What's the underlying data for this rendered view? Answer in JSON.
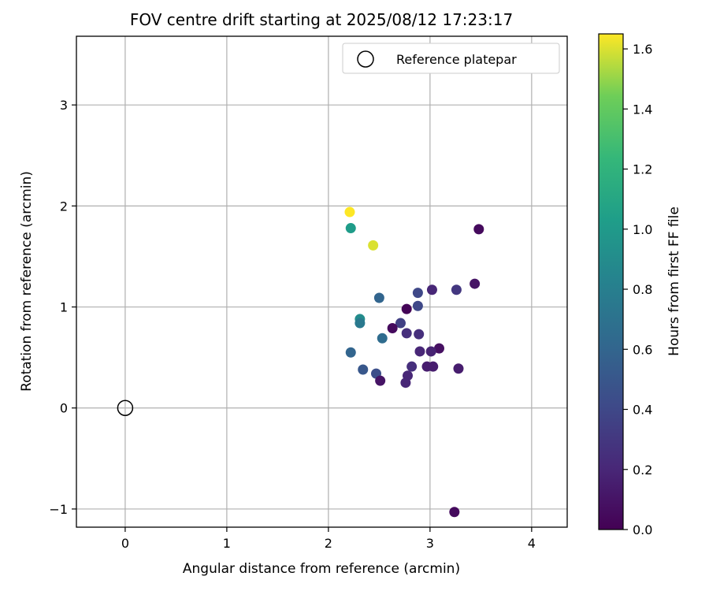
{
  "chart_data": {
    "type": "scatter",
    "title": "FOV centre drift starting at 2025/08/12 17:23:17",
    "xlabel": "Angular distance from reference (arcmin)",
    "ylabel": "Rotation from reference (arcmin)",
    "xlim": [
      -0.48,
      4.35
    ],
    "ylim": [
      -1.18,
      3.68
    ],
    "xticks": [
      0,
      1,
      2,
      3,
      4
    ],
    "yticks": [
      -1,
      0,
      1,
      2,
      3
    ],
    "xtick_labels": [
      "0",
      "1",
      "2",
      "3",
      "4"
    ],
    "ytick_labels": [
      "−1",
      "0",
      "1",
      "2",
      "3"
    ],
    "grid": true,
    "legend": {
      "position": "top-right",
      "entries": [
        {
          "label": "Reference platepar",
          "marker": "open-circle"
        }
      ]
    },
    "reference_point": {
      "x": 0,
      "y": 0
    },
    "colorbar": {
      "label": "Hours from first FF file",
      "min": 0.0,
      "max": 1.65,
      "ticks": [
        0.0,
        0.2,
        0.4,
        0.6,
        0.8,
        1.0,
        1.2,
        1.4,
        1.6
      ],
      "tick_labels": [
        "0.0",
        "0.2",
        "0.4",
        "0.6",
        "0.8",
        "1.0",
        "1.2",
        "1.4",
        "1.6"
      ],
      "colormap": "viridis"
    },
    "series": [
      {
        "points": [
          {
            "x": 2.21,
            "y": 1.94,
            "c": 1.65
          },
          {
            "x": 2.22,
            "y": 1.78,
            "c": 1.02
          },
          {
            "x": 2.44,
            "y": 1.61,
            "c": 1.6
          },
          {
            "x": 3.48,
            "y": 1.77,
            "c": 0.05
          },
          {
            "x": 3.44,
            "y": 1.23,
            "c": 0.1
          },
          {
            "x": 3.02,
            "y": 1.17,
            "c": 0.2
          },
          {
            "x": 3.26,
            "y": 1.17,
            "c": 0.3
          },
          {
            "x": 2.88,
            "y": 1.14,
            "c": 0.4
          },
          {
            "x": 2.5,
            "y": 1.09,
            "c": 0.6
          },
          {
            "x": 2.88,
            "y": 1.01,
            "c": 0.4
          },
          {
            "x": 2.77,
            "y": 0.98,
            "c": 0.02
          },
          {
            "x": 2.31,
            "y": 0.88,
            "c": 0.9
          },
          {
            "x": 2.31,
            "y": 0.84,
            "c": 0.75
          },
          {
            "x": 2.71,
            "y": 0.84,
            "c": 0.35
          },
          {
            "x": 2.63,
            "y": 0.79,
            "c": 0.05
          },
          {
            "x": 2.77,
            "y": 0.74,
            "c": 0.25
          },
          {
            "x": 2.89,
            "y": 0.73,
            "c": 0.25
          },
          {
            "x": 2.53,
            "y": 0.69,
            "c": 0.65
          },
          {
            "x": 3.09,
            "y": 0.59,
            "c": 0.08
          },
          {
            "x": 2.22,
            "y": 0.55,
            "c": 0.6
          },
          {
            "x": 2.9,
            "y": 0.56,
            "c": 0.2
          },
          {
            "x": 3.01,
            "y": 0.56,
            "c": 0.18
          },
          {
            "x": 2.82,
            "y": 0.41,
            "c": 0.25
          },
          {
            "x": 2.97,
            "y": 0.41,
            "c": 0.15
          },
          {
            "x": 3.03,
            "y": 0.41,
            "c": 0.15
          },
          {
            "x": 3.28,
            "y": 0.39,
            "c": 0.15
          },
          {
            "x": 2.34,
            "y": 0.38,
            "c": 0.5
          },
          {
            "x": 2.47,
            "y": 0.34,
            "c": 0.45
          },
          {
            "x": 2.78,
            "y": 0.32,
            "c": 0.2
          },
          {
            "x": 2.51,
            "y": 0.27,
            "c": 0.1
          },
          {
            "x": 2.76,
            "y": 0.25,
            "c": 0.2
          },
          {
            "x": 3.24,
            "y": -1.03,
            "c": 0.05
          }
        ]
      }
    ]
  }
}
